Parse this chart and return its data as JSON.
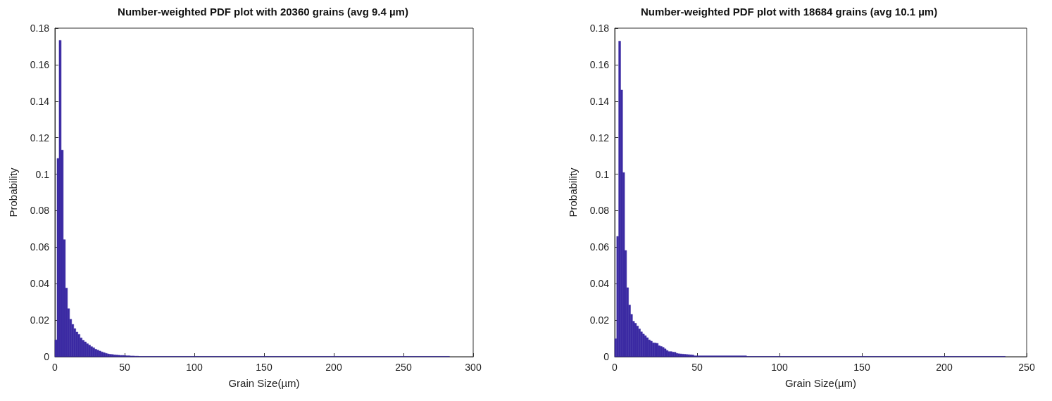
{
  "chart_data": [
    {
      "type": "histogram",
      "title": "Number-weighted PDF plot with 20360 grains (avg 9.4 µm)",
      "xlabel": "Grain Size(µm)",
      "ylabel": "Probability",
      "color": "#3b2aa3",
      "bins": [
        0,
        1.5,
        3,
        4.5,
        6,
        7.5,
        9,
        10.5,
        12,
        13.5,
        15,
        16.5,
        18,
        19.5,
        21,
        22.5,
        24,
        25.5,
        27,
        28.5,
        30,
        31.5,
        33,
        34.5,
        36,
        37.5,
        39,
        40.5,
        42,
        43.5,
        45,
        46.5,
        48,
        49.5,
        51,
        52.5,
        54,
        55.5,
        57,
        58.5,
        60,
        283
      ],
      "values": [
        0.0092,
        0.1086,
        0.1733,
        0.1132,
        0.0641,
        0.0376,
        0.0263,
        0.0205,
        0.0177,
        0.0154,
        0.0135,
        0.0122,
        0.0103,
        0.009,
        0.0081,
        0.0071,
        0.0064,
        0.0055,
        0.0049,
        0.0041,
        0.0036,
        0.0031,
        0.0026,
        0.0022,
        0.0018,
        0.0015,
        0.0013,
        0.0012,
        0.001,
        0.0009,
        0.0008,
        0.0007,
        0.0007,
        0.0006,
        0.0005,
        0.0005,
        0.0004,
        0.0004,
        0.0003,
        0.0003,
        0.0002
      ],
      "xlim": [
        0,
        300
      ],
      "xticks": [
        0,
        50,
        100,
        150,
        200,
        250,
        300
      ],
      "ylim": [
        0,
        0.18
      ],
      "yticks": [
        0,
        0.02,
        0.04,
        0.06,
        0.08,
        0.1,
        0.12,
        0.14,
        0.16,
        0.18
      ],
      "grid": false
    },
    {
      "type": "histogram",
      "title": "Number-weighted PDF plot with 18684 grains (avg 10.1 µm)",
      "xlabel": "Grain Size(µm)",
      "ylabel": "Probability",
      "color": "#3b2aa3",
      "bins": [
        0,
        1.2,
        2.4,
        3.6,
        4.8,
        6,
        7.2,
        8.4,
        9.6,
        10.8,
        12,
        13.2,
        14.4,
        15.6,
        16.8,
        18,
        19.2,
        20.4,
        21.6,
        22.8,
        24,
        25.2,
        26.4,
        27.6,
        28.8,
        30,
        31.2,
        32.4,
        33.6,
        34.8,
        36,
        37.2,
        38.4,
        39.6,
        40.8,
        42,
        43.2,
        44.4,
        45.6,
        46.8,
        48,
        80,
        237
      ],
      "values": [
        0.0098,
        0.0659,
        0.1729,
        0.1461,
        0.1009,
        0.0582,
        0.0378,
        0.0283,
        0.0232,
        0.0194,
        0.0183,
        0.0168,
        0.0152,
        0.0136,
        0.0124,
        0.0115,
        0.0104,
        0.0092,
        0.0085,
        0.0076,
        0.0075,
        0.0073,
        0.006,
        0.0056,
        0.0051,
        0.0043,
        0.0034,
        0.0028,
        0.0028,
        0.0025,
        0.0024,
        0.0018,
        0.0016,
        0.0015,
        0.0014,
        0.0013,
        0.0012,
        0.0011,
        0.001,
        0.0009,
        0.0005,
        0.0002
      ],
      "xlim": [
        0,
        250
      ],
      "xticks": [
        0,
        50,
        100,
        150,
        200,
        250
      ],
      "ylim": [
        0,
        0.18
      ],
      "yticks": [
        0,
        0.02,
        0.04,
        0.06,
        0.08,
        0.1,
        0.12,
        0.14,
        0.16,
        0.18
      ],
      "grid": false
    }
  ]
}
